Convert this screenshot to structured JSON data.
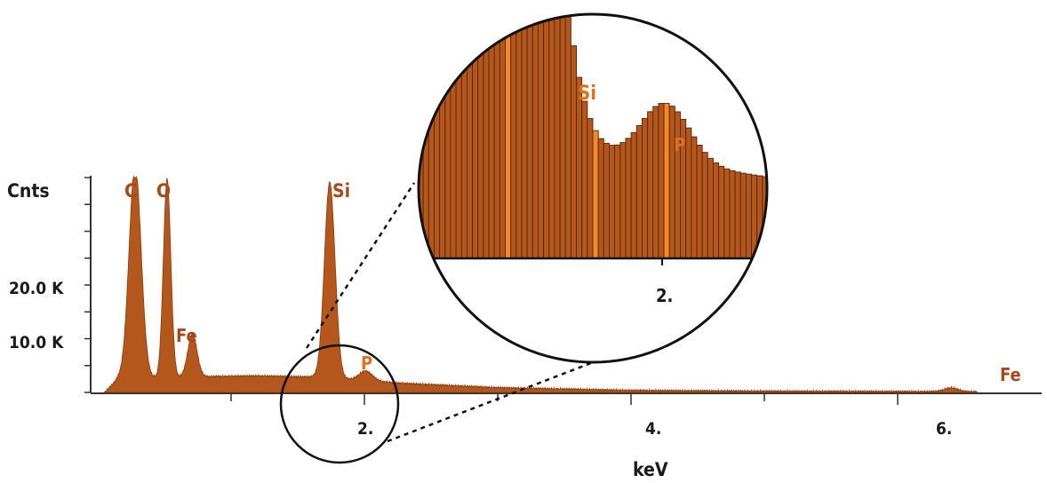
{
  "colors": {
    "spectrum_fill": "#b4571c",
    "spectrum_edge": "#8a3e10",
    "bar_line": "#5a2408",
    "highlight": "#f28a2a",
    "label": "#e0711d",
    "label_dark": "#a8491b",
    "axis": "#333333"
  },
  "chart_data": {
    "type": "area",
    "title": "",
    "xlabel": "keV",
    "ylabel": "Cnts",
    "x_ticks": [
      "2.",
      "4.",
      "6."
    ],
    "y_ticks": [
      "20.0 K",
      "10.0 K"
    ],
    "x_range": [
      0.0,
      6.6
    ],
    "y_range": [
      0,
      40000
    ],
    "log_scale": false,
    "grid": false,
    "peaks": [
      {
        "element": "C",
        "energy": 0.28,
        "counts": 40000,
        "clipped": true
      },
      {
        "element": "O",
        "energy": 0.52,
        "counts": 37000
      },
      {
        "element": "Fe",
        "energy": 0.71,
        "counts": 8000
      },
      {
        "element": "Si",
        "energy": 1.74,
        "counts": 36500
      },
      {
        "element": "P",
        "energy": 2.01,
        "counts": 1800
      },
      {
        "element": "Fe",
        "energy": 6.4,
        "counts": 700
      }
    ],
    "background": {
      "energy": [
        0.15,
        0.9,
        1.2,
        1.6,
        2.3,
        3.0,
        4.0,
        5.0,
        6.6
      ],
      "counts": [
        2500,
        3000,
        3100,
        2900,
        1700,
        900,
        400,
        250,
        150
      ]
    },
    "inset": {
      "description_free": true,
      "x_range": [
        1.55,
        2.2
      ],
      "x_ticks": [
        "2."
      ],
      "peaks": [
        {
          "element": "Si",
          "energy": 1.74
        },
        {
          "element": "P",
          "energy": 2.01
        }
      ]
    }
  }
}
